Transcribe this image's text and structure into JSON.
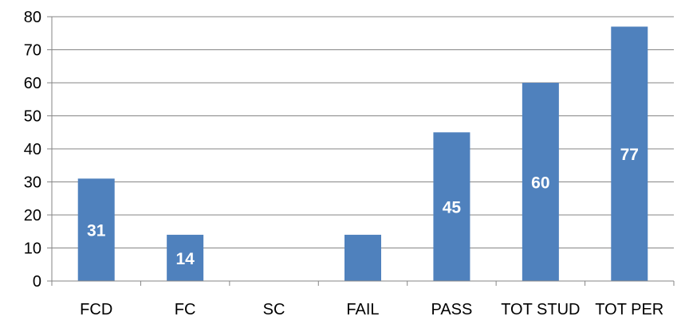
{
  "chart_data": {
    "type": "bar",
    "title": "",
    "xlabel": "",
    "ylabel": "",
    "categories": [
      "FCD",
      "FC",
      "SC",
      "FAIL",
      "PASS",
      "TOT STUD",
      "TOT PER"
    ],
    "values": [
      31,
      14,
      0,
      14,
      45,
      60,
      77
    ],
    "data_labels": [
      "31",
      "14",
      "",
      "",
      "45",
      "60",
      "77"
    ],
    "ylim": [
      0,
      80
    ],
    "yticks": [
      0,
      10,
      20,
      30,
      40,
      50,
      60,
      70,
      80
    ],
    "grid": true,
    "legend": "none",
    "colors": {
      "bar": "#4F81BD",
      "grid": "#868686",
      "axis": "#868686",
      "label": "#000000",
      "data_label": "#ffffff"
    }
  }
}
